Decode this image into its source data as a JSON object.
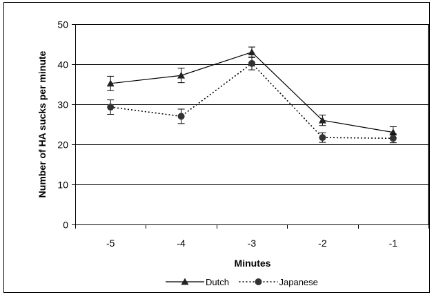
{
  "chart_data": {
    "type": "line",
    "xlabel": "Minutes",
    "ylabel": "Number of HA sucks per minute",
    "categories": [
      "-5",
      "-4",
      "-3",
      "-2",
      "-1"
    ],
    "ylim": [
      0,
      50
    ],
    "yticks": [
      0,
      10,
      20,
      30,
      40,
      50
    ],
    "grid": "horizontal",
    "legend_position": "bottom",
    "series": [
      {
        "name": "Dutch",
        "values": [
          35.2,
          37.2,
          43.0,
          26.0,
          23.0
        ],
        "error": [
          1.8,
          1.8,
          1.3,
          1.3,
          1.4
        ],
        "marker": "triangle",
        "line": "solid",
        "color": "#000000"
      },
      {
        "name": "Japanese",
        "values": [
          29.3,
          27.0,
          40.2,
          21.7,
          21.5
        ],
        "error": [
          1.8,
          1.8,
          1.6,
          1.2,
          1.1
        ],
        "marker": "circle",
        "line": "dotted",
        "color": "#000000"
      }
    ]
  }
}
